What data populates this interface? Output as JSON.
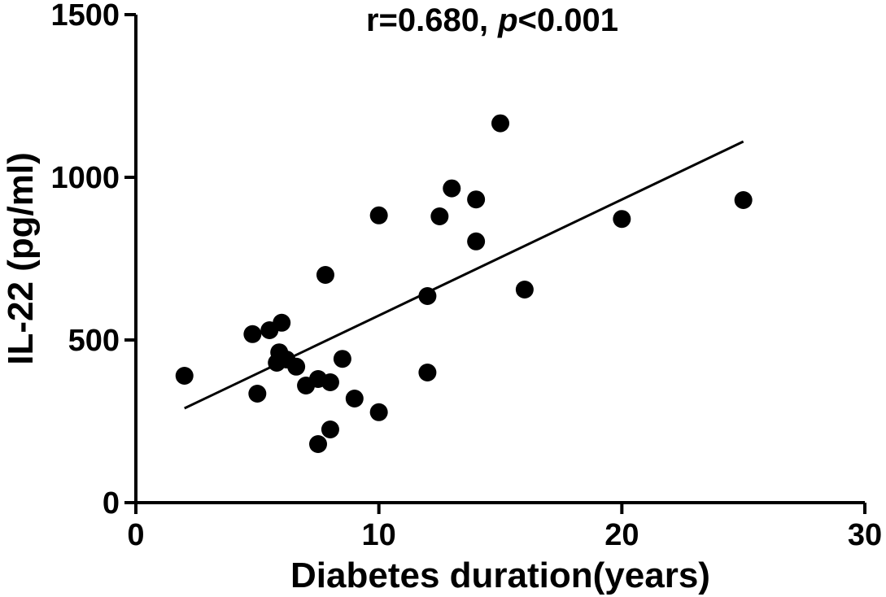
{
  "chart_data": {
    "type": "scatter",
    "title": "r=0.680,",
    "title_p_symbol": "p",
    "title_p_value": "<0.001",
    "xlabel": "Diabetes duration(years)",
    "ylabel": "IL-22 (pg/ml)",
    "xlim": [
      0,
      30
    ],
    "ylim": [
      0,
      1500
    ],
    "x_ticks": [
      0,
      10,
      20,
      30
    ],
    "y_ticks": [
      0,
      500,
      1000,
      1500
    ],
    "x_tick_labels": [
      "0",
      "10",
      "20",
      "30"
    ],
    "y_tick_labels": [
      "0",
      "500",
      "1000",
      "1500"
    ],
    "grid": false,
    "legend": "none",
    "marker_color": "#000000",
    "points": [
      {
        "x": 2,
        "y": 390
      },
      {
        "x": 4.8,
        "y": 518
      },
      {
        "x": 5,
        "y": 335
      },
      {
        "x": 5.5,
        "y": 530
      },
      {
        "x": 5.8,
        "y": 430
      },
      {
        "x": 5.9,
        "y": 462
      },
      {
        "x": 6,
        "y": 553
      },
      {
        "x": 6.2,
        "y": 440
      },
      {
        "x": 6.6,
        "y": 418
      },
      {
        "x": 7,
        "y": 360
      },
      {
        "x": 7.5,
        "y": 180
      },
      {
        "x": 7.5,
        "y": 380
      },
      {
        "x": 7.8,
        "y": 700
      },
      {
        "x": 8,
        "y": 225
      },
      {
        "x": 8,
        "y": 370
      },
      {
        "x": 8.5,
        "y": 442
      },
      {
        "x": 9,
        "y": 320
      },
      {
        "x": 10,
        "y": 278
      },
      {
        "x": 10,
        "y": 883
      },
      {
        "x": 12,
        "y": 400
      },
      {
        "x": 12,
        "y": 635
      },
      {
        "x": 12.5,
        "y": 880
      },
      {
        "x": 13,
        "y": 966
      },
      {
        "x": 14,
        "y": 932
      },
      {
        "x": 14,
        "y": 803
      },
      {
        "x": 15,
        "y": 1166
      },
      {
        "x": 16,
        "y": 655
      },
      {
        "x": 20,
        "y": 872
      },
      {
        "x": 25,
        "y": 930
      }
    ],
    "fit_line": {
      "x": [
        2,
        25
      ],
      "y": [
        290,
        1110
      ]
    }
  }
}
